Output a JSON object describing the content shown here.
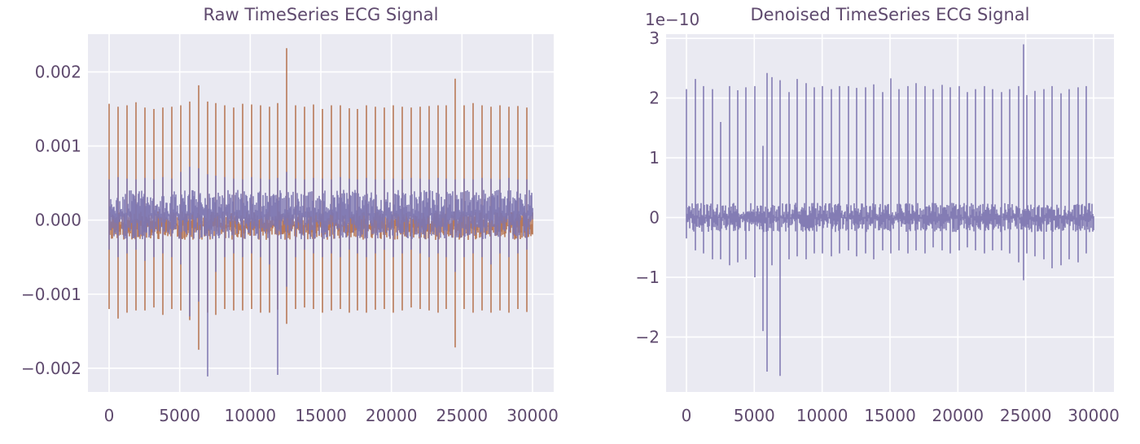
{
  "chart_data": [
    {
      "type": "line",
      "title": "Raw TimeSeries ECG Signal",
      "xlabel": "",
      "ylabel": "",
      "xlim": [
        -1500,
        31500
      ],
      "ylim": [
        -0.00232,
        0.00251
      ],
      "xticks": [
        0,
        5000,
        10000,
        15000,
        20000,
        25000,
        30000
      ],
      "xtick_labels": [
        "0",
        "5000",
        "10000",
        "15000",
        "20000",
        "25000",
        "30000"
      ],
      "yticks": [
        -0.002,
        -0.001,
        0.0,
        0.001,
        0.002
      ],
      "ytick_labels": [
        "−0.002",
        "−0.001",
        "0.000",
        "0.001",
        "0.002"
      ],
      "grid": true,
      "legend": "none",
      "series": [
        {
          "color": "#b5734f",
          "n_samples": 30000,
          "baseline_band": [
            -0.00035,
            0.0002
          ],
          "beat_times": [
            0,
            660,
            1290,
            1920,
            2560,
            3190,
            3820,
            4450,
            5080,
            5700,
            6330,
            6960,
            7580,
            8200,
            8830,
            9460,
            10090,
            10720,
            11340,
            11970,
            12600,
            13220,
            13850,
            14480,
            15110,
            15740,
            16370,
            17000,
            17620,
            18250,
            18880,
            19510,
            20140,
            20770,
            21400,
            22020,
            22650,
            23280,
            23910,
            24540,
            25170,
            25790,
            26420,
            27050,
            27680,
            28310,
            28940,
            29570
          ],
          "beat_peaks": [
            0.00157,
            0.00153,
            0.00155,
            0.00159,
            0.00152,
            0.0015,
            0.00152,
            0.00153,
            0.00155,
            0.0016,
            0.00182,
            0.0016,
            0.00158,
            0.00155,
            0.00152,
            0.00157,
            0.00156,
            0.00155,
            0.00153,
            0.00158,
            0.00232,
            0.00155,
            0.00153,
            0.00156,
            0.0015,
            0.00155,
            0.00155,
            0.00151,
            0.0015,
            0.00155,
            0.00153,
            0.00152,
            0.00155,
            0.00153,
            0.00152,
            0.00153,
            0.00154,
            0.00155,
            0.00155,
            0.00191,
            0.00155,
            0.00158,
            0.00155,
            0.00153,
            0.00155,
            0.00153,
            0.00154,
            0.00152
          ],
          "beat_troughs": [
            -0.0012,
            -0.00133,
            -0.00125,
            -0.00122,
            -0.00122,
            -0.00118,
            -0.00128,
            -0.0012,
            -0.00122,
            -0.00135,
            -0.00175,
            -0.00125,
            -0.00128,
            -0.0012,
            -0.00122,
            -0.00122,
            -0.0012,
            -0.00125,
            -0.00125,
            -0.00121,
            -0.0014,
            -0.0012,
            -0.00118,
            -0.0012,
            -0.00125,
            -0.00122,
            -0.0012,
            -0.00125,
            -0.00122,
            -0.00125,
            -0.00121,
            -0.0012,
            -0.00125,
            -0.00122,
            -0.00118,
            -0.0012,
            -0.00122,
            -0.00125,
            -0.0012,
            -0.00172,
            -0.0012,
            -0.00125,
            -0.00122,
            -0.00125,
            -0.00122,
            -0.00125,
            -0.0012,
            -0.00124
          ]
        },
        {
          "color": "#7d76b0",
          "n_samples": 30000,
          "baseline_band": [
            -0.0004,
            0.00055
          ],
          "beat_times": [
            0,
            660,
            1290,
            1920,
            2560,
            3190,
            3820,
            4450,
            5080,
            5700,
            6330,
            6960,
            7580,
            8200,
            8830,
            9460,
            10090,
            10720,
            11340,
            11970,
            12600,
            13220,
            13850,
            14480,
            15110,
            15740,
            16370,
            17000,
            17620,
            18250,
            18880,
            19510,
            20140,
            20770,
            21400,
            22020,
            22650,
            23280,
            23910,
            24540,
            25170,
            25790,
            26420,
            27050,
            27680,
            28310,
            28940,
            29570
          ],
          "beat_peaks": [
            0.00055,
            0.00058,
            0.00056,
            0.00055,
            0.00057,
            0.00055,
            0.00058,
            0.00056,
            0.00065,
            0.00072,
            0.0007,
            0.00062,
            0.0006,
            0.00058,
            0.00056,
            0.00055,
            0.00058,
            0.00056,
            0.00055,
            0.00057,
            0.00065,
            0.00056,
            0.00055,
            0.00057,
            0.00056,
            0.00055,
            0.00058,
            0.00056,
            0.00055,
            0.00057,
            0.00055,
            0.00055,
            0.00056,
            0.00055,
            0.00057,
            0.00056,
            0.00055,
            0.00057,
            0.00056,
            0.00055,
            0.00056,
            0.00055,
            0.00057,
            0.00056,
            0.00055,
            0.00057,
            0.00055,
            0.00055
          ],
          "beat_troughs": [
            -0.0004,
            -0.0005,
            -0.00045,
            -0.0004,
            -0.00055,
            -0.0005,
            -0.00045,
            -0.0005,
            -0.0006,
            -0.0013,
            -0.0011,
            -0.00211,
            -0.0007,
            -0.0005,
            -0.00045,
            -0.0005,
            -0.00045,
            -0.0005,
            -0.0006,
            -0.00209,
            -0.0009,
            -0.0005,
            -0.0004,
            -0.00045,
            -0.0005,
            -0.00045,
            -0.0005,
            -0.0004,
            -0.00045,
            -0.0005,
            -0.00045,
            -0.0004,
            -0.0005,
            -0.00045,
            -0.0004,
            -0.00045,
            -0.0005,
            -0.00045,
            -0.0005,
            -0.0007,
            -0.0005,
            -0.00045,
            -0.0005,
            -0.0006,
            -0.00045,
            -0.0005,
            -0.00045,
            -0.0004
          ]
        }
      ]
    },
    {
      "type": "line",
      "title": "Denoised TimeSeries ECG Signal",
      "offset_text": "1e−10",
      "xlabel": "",
      "ylabel": "",
      "xlim": [
        -1500,
        31500
      ],
      "ylim": [
        -2.92,
        3.07
      ],
      "xticks": [
        0,
        5000,
        10000,
        15000,
        20000,
        25000,
        30000
      ],
      "xtick_labels": [
        "0",
        "5000",
        "10000",
        "15000",
        "20000",
        "25000",
        "30000"
      ],
      "yticks": [
        -2,
        -1,
        0,
        1,
        2,
        3
      ],
      "ytick_labels": [
        "−2",
        "−1",
        "0",
        "1",
        "2",
        "3"
      ],
      "grid": true,
      "legend": "none",
      "series": [
        {
          "color": "#7d76b0",
          "n_samples": 30000,
          "baseline_band": [
            -0.35,
            0.35
          ],
          "beat_times": [
            0,
            650,
            1280,
            1900,
            2520,
            3150,
            3780,
            4400,
            5030,
            5650,
            5920,
            6280,
            6910,
            7530,
            8160,
            8790,
            9410,
            10040,
            10670,
            11290,
            11920,
            12550,
            13170,
            13800,
            14430,
            15050,
            15680,
            16310,
            16930,
            17560,
            18190,
            18810,
            19440,
            20070,
            20690,
            21320,
            21950,
            22570,
            23200,
            23830,
            24450,
            24850,
            25080,
            25700,
            26330,
            26960,
            27580,
            28210,
            28840,
            29460
          ],
          "beat_peaks": [
            2.15,
            2.32,
            2.2,
            2.15,
            1.6,
            2.2,
            2.13,
            2.18,
            2.2,
            1.2,
            2.42,
            2.35,
            2.3,
            2.1,
            2.32,
            2.25,
            2.18,
            2.2,
            2.15,
            2.2,
            2.2,
            2.17,
            2.18,
            2.23,
            2.1,
            2.33,
            2.15,
            2.2,
            2.25,
            2.2,
            2.15,
            2.22,
            2.18,
            2.2,
            2.1,
            2.15,
            2.2,
            2.15,
            2.1,
            2.15,
            2.2,
            2.9,
            2.05,
            2.12,
            2.15,
            2.2,
            2.08,
            2.15,
            2.18,
            2.2
          ],
          "beat_troughs": [
            -0.35,
            -0.55,
            -0.6,
            -0.7,
            -0.7,
            -0.8,
            -0.75,
            -0.7,
            -1.0,
            -1.9,
            -2.58,
            -0.8,
            -2.65,
            -0.7,
            -0.65,
            -0.7,
            -0.6,
            -0.6,
            -0.65,
            -0.6,
            -0.55,
            -0.65,
            -0.6,
            -0.7,
            -0.55,
            -0.6,
            -0.55,
            -0.6,
            -0.55,
            -0.6,
            -0.5,
            -0.55,
            -0.6,
            -0.55,
            -0.5,
            -0.55,
            -0.6,
            -0.55,
            -0.55,
            -0.6,
            -0.75,
            -1.05,
            -0.6,
            -0.65,
            -0.7,
            -0.85,
            -0.8,
            -0.7,
            -0.75,
            -0.6
          ]
        }
      ]
    }
  ]
}
